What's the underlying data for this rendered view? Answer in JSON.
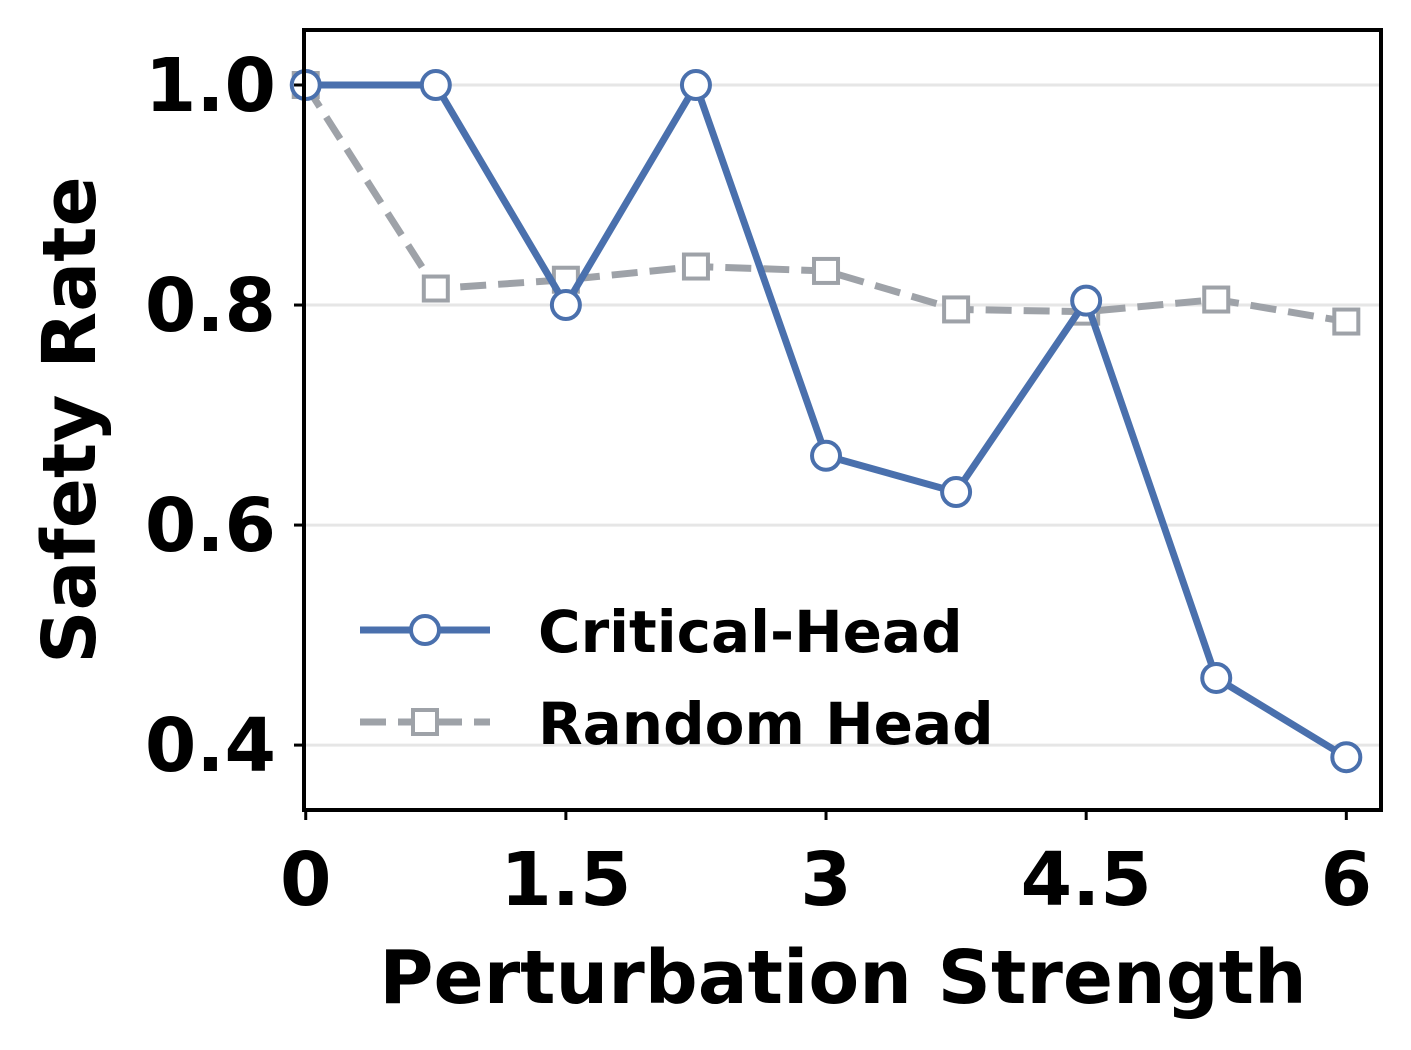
{
  "chart_data": {
    "type": "line",
    "title": "",
    "xlabel": "Perturbation Strength",
    "ylabel": "Safety Rate",
    "xlim": [
      -0.01,
      6.2
    ],
    "ylim": [
      0.341,
      1.05
    ],
    "xticks": [
      0,
      1.5,
      3,
      4.5,
      6
    ],
    "xtick_labels": [
      "0",
      "1.5",
      "3",
      "4.5",
      "6"
    ],
    "yticks": [
      0.4,
      0.6,
      0.8,
      1.0
    ],
    "ytick_labels": [
      "0.4",
      "0.6",
      "0.8",
      "1.0"
    ],
    "grid": "horizontal",
    "legend_position": "lower-left",
    "x": [
      0,
      0.75,
      1.5,
      2.25,
      3,
      3.75,
      4.5,
      5.25,
      6
    ],
    "series": [
      {
        "name": "Critical-Head",
        "color": "#4a70ad",
        "style": "solid",
        "marker": "circle",
        "values": [
          1.0,
          1.0,
          0.8,
          1.0,
          0.663,
          0.63,
          0.804,
          0.461,
          0.389
        ]
      },
      {
        "name": "Random Head",
        "color": "#9ea2a8",
        "style": "dashed",
        "marker": "square",
        "values": [
          1.0,
          0.815,
          0.823,
          0.835,
          0.831,
          0.796,
          0.794,
          0.805,
          0.785
        ]
      }
    ]
  }
}
